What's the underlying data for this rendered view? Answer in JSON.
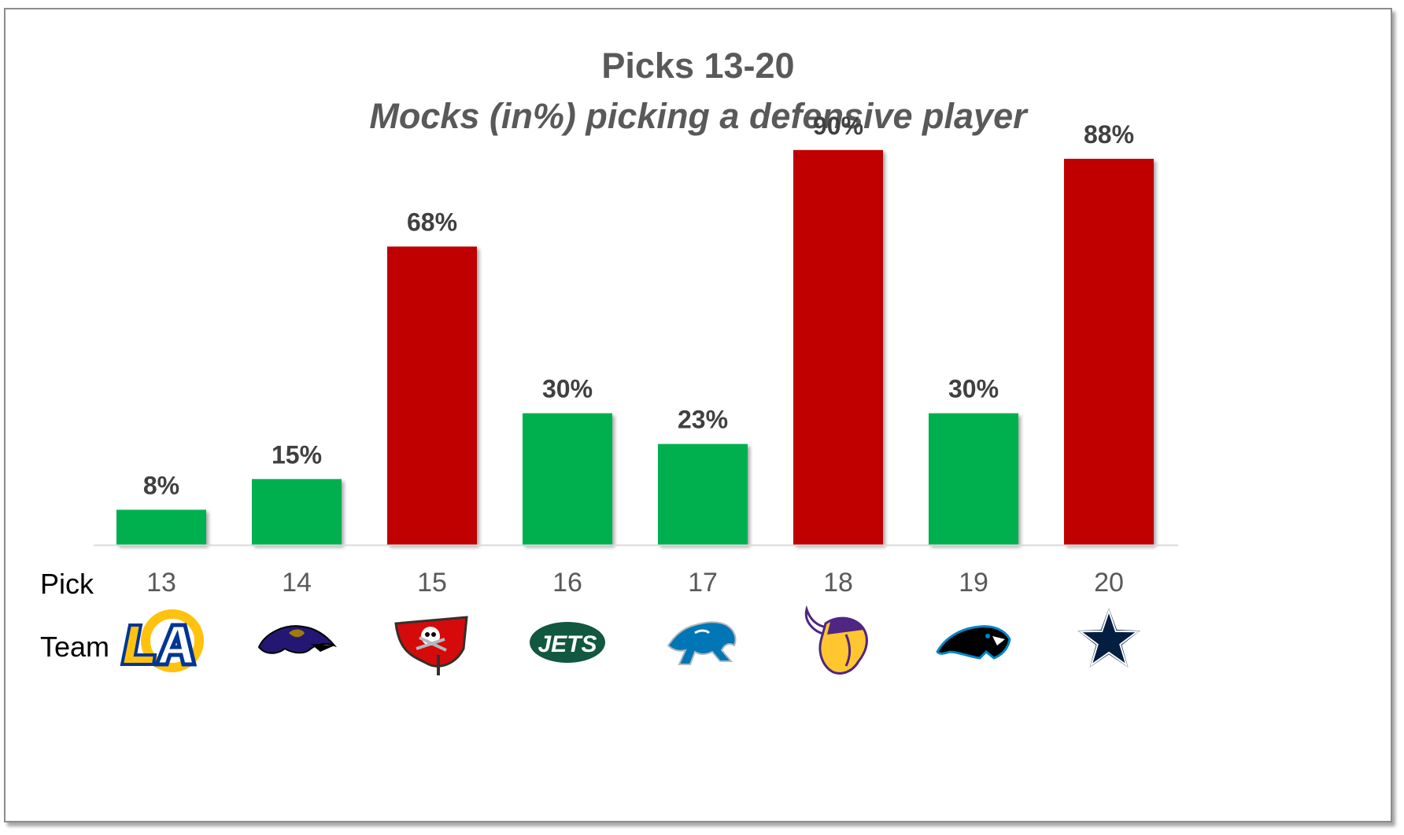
{
  "chart_data": {
    "type": "bar",
    "title": "Picks 13-20",
    "subtitle": "Mocks (in%) picking a defensive player",
    "row_labels": {
      "pick": "Pick",
      "team": "Team"
    },
    "categories": [
      "13",
      "14",
      "15",
      "16",
      "17",
      "18",
      "19",
      "20"
    ],
    "values": [
      8,
      15,
      68,
      30,
      23,
      90,
      30,
      88
    ],
    "data_labels": [
      "8%",
      "15%",
      "68%",
      "30%",
      "23%",
      "90%",
      "30%",
      "88%"
    ],
    "teams": [
      "Los Angeles Rams",
      "Baltimore Ravens",
      "Tampa Bay Buccaneers",
      "New York Jets",
      "Detroit Lions",
      "Minnesota Vikings",
      "Carolina Panthers",
      "Dallas Cowboys"
    ],
    "team_icons": [
      "rams-logo-icon",
      "ravens-logo-icon",
      "buccaneers-logo-icon",
      "jets-logo-icon",
      "lions-logo-icon",
      "vikings-logo-icon",
      "panthers-logo-icon",
      "cowboys-logo-icon"
    ],
    "jets_logo_text": "JETS",
    "bar_colors": [
      "#00b050",
      "#00b050",
      "#c00000",
      "#00b050",
      "#00b050",
      "#c00000",
      "#00b050",
      "#c00000"
    ],
    "ylim": [
      0,
      100
    ],
    "grid": false,
    "legend": "none"
  }
}
